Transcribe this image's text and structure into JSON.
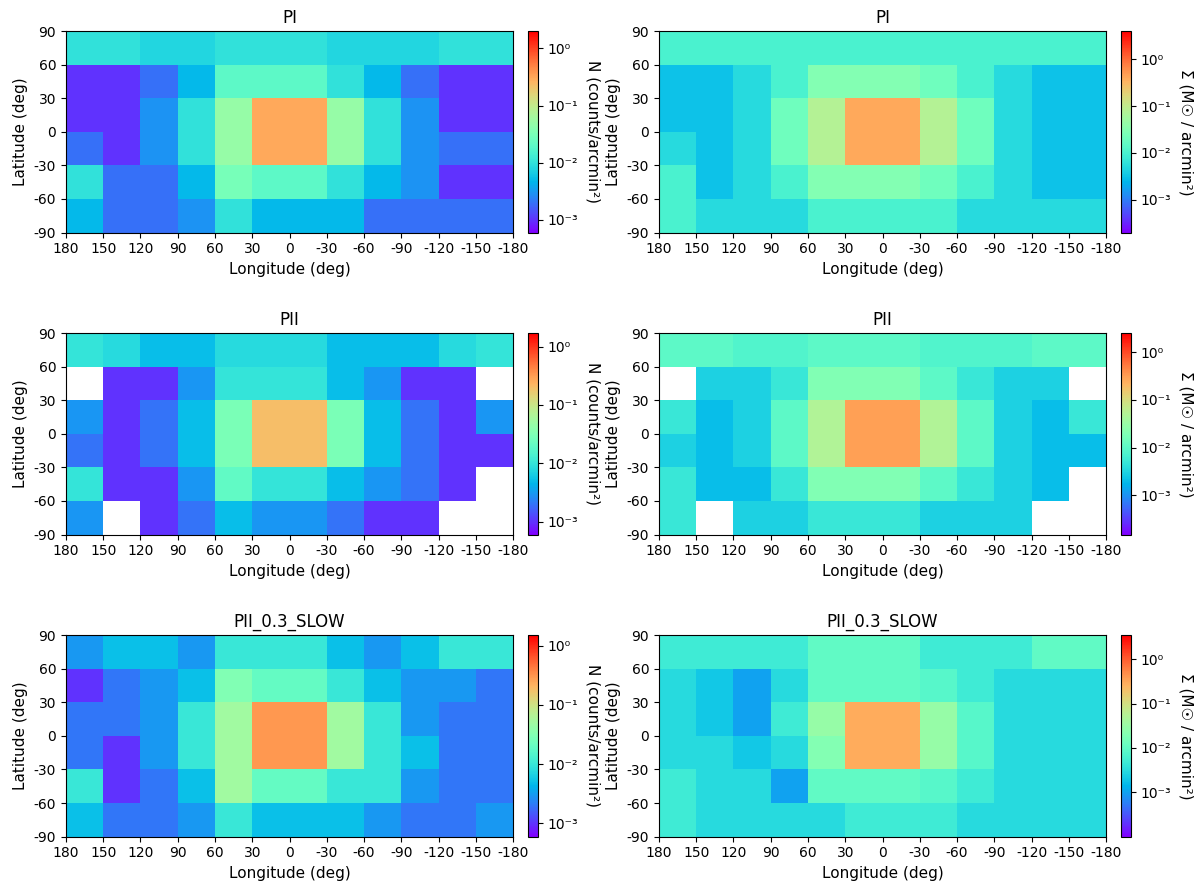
{
  "chart_data": [
    {
      "type": "heatmap",
      "title": "PI",
      "x_label": "Longitude (deg)",
      "y_label": "Latitude (deg)",
      "xlim": [
        180,
        -180
      ],
      "ylim": [
        -90,
        90
      ],
      "xticks": [
        180,
        150,
        120,
        90,
        60,
        30,
        0,
        -30,
        -60,
        -90,
        -120,
        -150,
        -180
      ],
      "yticks": [
        -90,
        -60,
        -30,
        0,
        30,
        60,
        90
      ],
      "lon_edges": [
        180,
        150,
        120,
        90,
        60,
        30,
        0,
        -30,
        -60,
        -90,
        -120,
        -150,
        -180
      ],
      "lat_edges": [
        90,
        60,
        30,
        0,
        -30,
        -60,
        -90
      ],
      "log": true,
      "cells": [
        [
          0.01,
          0.01,
          0.008,
          0.008,
          0.01,
          0.01,
          0.01,
          0.008,
          0.008,
          0.008,
          0.01,
          0.01
        ],
        [
          0.001,
          0.001,
          0.002,
          0.005,
          0.02,
          0.02,
          0.02,
          0.01,
          0.005,
          0.002,
          0.001,
          0.001
        ],
        [
          0.001,
          0.001,
          0.003,
          0.01,
          0.05,
          0.3,
          0.3,
          0.05,
          0.01,
          0.003,
          0.001,
          0.001
        ],
        [
          0.002,
          0.001,
          0.003,
          0.01,
          0.05,
          0.3,
          0.3,
          0.05,
          0.01,
          0.003,
          0.002,
          0.002
        ],
        [
          0.01,
          0.002,
          0.002,
          0.005,
          0.03,
          0.02,
          0.02,
          0.01,
          0.005,
          0.003,
          0.001,
          0.001
        ],
        [
          0.005,
          0.002,
          0.002,
          0.003,
          0.01,
          0.005,
          0.005,
          0.005,
          0.002,
          0.002,
          0.002,
          0.002
        ]
      ],
      "colorbar_label": "N (counts/arcmin²)",
      "colorbar_range": [
        0.0006,
        2
      ],
      "colorbar_ticks": [
        {
          "value": 0.001,
          "label": "10⁻³"
        },
        {
          "value": 0.01,
          "label": "10⁻²"
        },
        {
          "value": 0.1,
          "label": "10⁻¹"
        },
        {
          "value": 1,
          "label": "10⁰"
        }
      ]
    },
    {
      "type": "heatmap",
      "title": "PI",
      "x_label": "Longitude (deg)",
      "y_label": "Latitude (deg)",
      "xlim": [
        180,
        -180
      ],
      "ylim": [
        -90,
        90
      ],
      "xticks": [
        180,
        150,
        120,
        90,
        60,
        30,
        0,
        -30,
        -60,
        -90,
        -120,
        -150,
        -180
      ],
      "yticks": [
        -90,
        -60,
        -30,
        0,
        30,
        60,
        90
      ],
      "lon_edges": [
        180,
        150,
        120,
        90,
        60,
        30,
        0,
        -30,
        -60,
        -90,
        -120,
        -150,
        -180
      ],
      "lat_edges": [
        90,
        60,
        30,
        0,
        -30,
        -60,
        -90
      ],
      "log": true,
      "cells": [
        [
          0.01,
          0.01,
          0.01,
          0.01,
          0.01,
          0.01,
          0.01,
          0.01,
          0.01,
          0.01,
          0.01,
          0.01
        ],
        [
          0.003,
          0.003,
          0.005,
          0.01,
          0.03,
          0.03,
          0.03,
          0.02,
          0.01,
          0.005,
          0.003,
          0.003
        ],
        [
          0.003,
          0.003,
          0.005,
          0.02,
          0.08,
          0.4,
          0.4,
          0.08,
          0.02,
          0.005,
          0.003,
          0.003
        ],
        [
          0.005,
          0.003,
          0.005,
          0.02,
          0.08,
          0.4,
          0.4,
          0.08,
          0.02,
          0.005,
          0.003,
          0.003
        ],
        [
          0.01,
          0.003,
          0.005,
          0.01,
          0.03,
          0.03,
          0.03,
          0.02,
          0.01,
          0.005,
          0.003,
          0.003
        ],
        [
          0.01,
          0.005,
          0.005,
          0.005,
          0.01,
          0.01,
          0.01,
          0.01,
          0.005,
          0.005,
          0.005,
          0.005
        ]
      ],
      "colorbar_label": "Σ (M☉ / arcmin²)",
      "colorbar_range": [
        0.0002,
        4
      ],
      "colorbar_ticks": [
        {
          "value": 0.001,
          "label": "10⁻³"
        },
        {
          "value": 0.01,
          "label": "10⁻²"
        },
        {
          "value": 0.1,
          "label": "10⁻¹"
        },
        {
          "value": 1,
          "label": "10⁰"
        }
      ]
    },
    {
      "type": "heatmap",
      "title": "PII",
      "x_label": "Longitude (deg)",
      "y_label": "Latitude (deg)",
      "xlim": [
        180,
        -180
      ],
      "ylim": [
        -90,
        90
      ],
      "xticks": [
        180,
        150,
        120,
        90,
        60,
        30,
        0,
        -30,
        -60,
        -90,
        -120,
        -150,
        -180
      ],
      "yticks": [
        -90,
        -60,
        -30,
        0,
        30,
        60,
        90
      ],
      "lon_edges": [
        180,
        150,
        120,
        90,
        60,
        30,
        0,
        -30,
        -60,
        -90,
        -120,
        -150,
        -180
      ],
      "lat_edges": [
        90,
        60,
        30,
        0,
        -30,
        -60,
        -90
      ],
      "log": true,
      "cells": [
        [
          0.01,
          0.008,
          0.005,
          0.005,
          0.008,
          0.008,
          0.008,
          0.005,
          0.005,
          0.005,
          0.008,
          0.01
        ],
        [
          null,
          0.001,
          0.001,
          0.003,
          0.01,
          0.01,
          0.01,
          0.005,
          0.003,
          0.001,
          0.001,
          null
        ],
        [
          0.003,
          0.001,
          0.002,
          0.005,
          0.03,
          0.2,
          0.2,
          0.03,
          0.005,
          0.002,
          0.001,
          0.003
        ],
        [
          0.002,
          0.001,
          0.002,
          0.005,
          0.03,
          0.2,
          0.2,
          0.03,
          0.005,
          0.002,
          0.001,
          0.001
        ],
        [
          0.01,
          0.001,
          0.001,
          0.003,
          0.02,
          0.01,
          0.01,
          0.005,
          0.003,
          0.002,
          0.001,
          null
        ],
        [
          0.003,
          null,
          0.001,
          0.002,
          0.005,
          0.003,
          0.003,
          0.002,
          0.001,
          0.001,
          null,
          null
        ]
      ],
      "colorbar_label": "N (counts/arcmin²)",
      "colorbar_range": [
        0.0006,
        1.7
      ],
      "colorbar_ticks": [
        {
          "value": 0.001,
          "label": "10⁻³"
        },
        {
          "value": 0.01,
          "label": "10⁻²"
        },
        {
          "value": 0.1,
          "label": "10⁻¹"
        },
        {
          "value": 1,
          "label": "10⁰"
        }
      ]
    },
    {
      "type": "heatmap",
      "title": "PII",
      "x_label": "Longitude (deg)",
      "y_label": "Latitude (deg)",
      "xlim": [
        180,
        -180
      ],
      "ylim": [
        -90,
        90
      ],
      "xticks": [
        180,
        150,
        120,
        90,
        60,
        30,
        0,
        -30,
        -60,
        -90,
        -120,
        -150,
        -180
      ],
      "yticks": [
        -90,
        -60,
        -30,
        0,
        30,
        60,
        90
      ],
      "lon_edges": [
        180,
        150,
        120,
        90,
        60,
        30,
        0,
        -30,
        -60,
        -90,
        -120,
        -150,
        -180
      ],
      "lat_edges": [
        90,
        60,
        30,
        0,
        -30,
        -60,
        -90
      ],
      "log": true,
      "cells": [
        [
          0.01,
          0.01,
          0.008,
          0.008,
          0.01,
          0.01,
          0.01,
          0.008,
          0.008,
          0.008,
          0.01,
          0.01
        ],
        [
          null,
          0.003,
          0.003,
          0.005,
          0.02,
          0.02,
          0.02,
          0.01,
          0.005,
          0.003,
          0.003,
          null
        ],
        [
          0.005,
          0.002,
          0.003,
          0.01,
          0.05,
          0.3,
          0.3,
          0.05,
          0.01,
          0.003,
          0.002,
          0.005
        ],
        [
          0.003,
          0.002,
          0.003,
          0.01,
          0.05,
          0.3,
          0.3,
          0.05,
          0.01,
          0.003,
          0.002,
          0.002
        ],
        [
          0.005,
          0.002,
          0.002,
          0.005,
          0.02,
          0.02,
          0.02,
          0.01,
          0.005,
          0.003,
          0.002,
          null
        ],
        [
          0.005,
          null,
          0.003,
          0.003,
          0.005,
          0.005,
          0.005,
          0.003,
          0.003,
          0.003,
          null,
          null
        ]
      ],
      "colorbar_label": "Σ (M☉ / arcmin²)",
      "colorbar_range": [
        0.00015,
        2.5
      ],
      "colorbar_ticks": [
        {
          "value": 0.001,
          "label": "10⁻³"
        },
        {
          "value": 0.01,
          "label": "10⁻²"
        },
        {
          "value": 0.1,
          "label": "10⁻¹"
        },
        {
          "value": 1,
          "label": "10⁰"
        }
      ]
    },
    {
      "type": "heatmap",
      "title": "PII_0.3_SLOW",
      "x_label": "Longitude (deg)",
      "y_label": "Latitude (deg)",
      "xlim": [
        180,
        -180
      ],
      "ylim": [
        -90,
        90
      ],
      "xticks": [
        180,
        150,
        120,
        90,
        60,
        30,
        0,
        -30,
        -60,
        -90,
        -120,
        -150,
        -180
      ],
      "yticks": [
        -90,
        -60,
        -30,
        0,
        30,
        60,
        90
      ],
      "lon_edges": [
        180,
        150,
        120,
        90,
        60,
        30,
        0,
        -30,
        -60,
        -90,
        -120,
        -150,
        -180
      ],
      "lat_edges": [
        90,
        60,
        30,
        0,
        -30,
        -60,
        -90
      ],
      "log": true,
      "cells": [
        [
          0.003,
          0.005,
          0.005,
          0.003,
          0.01,
          0.01,
          0.01,
          0.005,
          0.003,
          0.005,
          0.01,
          0.01
        ],
        [
          0.001,
          0.002,
          0.003,
          0.005,
          0.03,
          0.02,
          0.02,
          0.01,
          0.005,
          0.003,
          0.003,
          0.002
        ],
        [
          0.002,
          0.002,
          0.003,
          0.01,
          0.05,
          0.3,
          0.3,
          0.05,
          0.01,
          0.003,
          0.002,
          0.002
        ],
        [
          0.002,
          0.001,
          0.003,
          0.01,
          0.05,
          0.3,
          0.3,
          0.05,
          0.01,
          0.005,
          0.002,
          0.002
        ],
        [
          0.01,
          0.001,
          0.002,
          0.005,
          0.05,
          0.02,
          0.02,
          0.01,
          0.01,
          0.003,
          0.002,
          0.002
        ],
        [
          0.005,
          0.002,
          0.002,
          0.003,
          0.01,
          0.005,
          0.005,
          0.005,
          0.003,
          0.002,
          0.002,
          0.003
        ]
      ],
      "colorbar_label": "N (counts/arcmin²)",
      "colorbar_range": [
        0.0006,
        1.5
      ],
      "colorbar_ticks": [
        {
          "value": 0.001,
          "label": "10⁻³"
        },
        {
          "value": 0.01,
          "label": "10⁻²"
        },
        {
          "value": 0.1,
          "label": "10⁻¹"
        },
        {
          "value": 1,
          "label": "10⁰"
        }
      ]
    },
    {
      "type": "heatmap",
      "title": "PII_0.3_SLOW",
      "x_label": "Longitude (deg)",
      "y_label": "Latitude (deg)",
      "xlim": [
        180,
        -180
      ],
      "ylim": [
        -90,
        90
      ],
      "xticks": [
        180,
        150,
        120,
        90,
        60,
        30,
        0,
        -30,
        -60,
        -90,
        -120,
        -150,
        -180
      ],
      "yticks": [
        -90,
        -60,
        -30,
        0,
        30,
        60,
        90
      ],
      "lon_edges": [
        180,
        150,
        120,
        90,
        60,
        30,
        0,
        -30,
        -60,
        -90,
        -120,
        -150,
        -180
      ],
      "lat_edges": [
        90,
        60,
        30,
        0,
        -30,
        -60,
        -90
      ],
      "log": true,
      "cells": [
        [
          0.005,
          0.005,
          0.005,
          0.005,
          0.01,
          0.01,
          0.01,
          0.005,
          0.005,
          0.005,
          0.01,
          0.01
        ],
        [
          0.003,
          0.002,
          0.001,
          0.003,
          0.01,
          0.01,
          0.01,
          0.008,
          0.005,
          0.003,
          0.003,
          0.003
        ],
        [
          0.003,
          0.002,
          0.001,
          0.005,
          0.03,
          0.3,
          0.3,
          0.03,
          0.008,
          0.003,
          0.003,
          0.003
        ],
        [
          0.003,
          0.003,
          0.002,
          0.003,
          0.02,
          0.3,
          0.3,
          0.03,
          0.008,
          0.003,
          0.003,
          0.003
        ],
        [
          0.005,
          0.003,
          0.003,
          0.001,
          0.01,
          0.01,
          0.01,
          0.008,
          0.005,
          0.003,
          0.003,
          0.003
        ],
        [
          0.005,
          0.003,
          0.003,
          0.003,
          0.003,
          0.005,
          0.005,
          0.005,
          0.003,
          0.003,
          0.003,
          0.003
        ]
      ],
      "colorbar_label": "Σ (M☉ / arcmin²)",
      "colorbar_range": [
        0.0001,
        3.5
      ],
      "colorbar_ticks": [
        {
          "value": 0.001,
          "label": "10⁻³"
        },
        {
          "value": 0.01,
          "label": "10⁻²"
        },
        {
          "value": 0.1,
          "label": "10⁻¹"
        },
        {
          "value": 1,
          "label": "10⁰"
        }
      ]
    }
  ]
}
